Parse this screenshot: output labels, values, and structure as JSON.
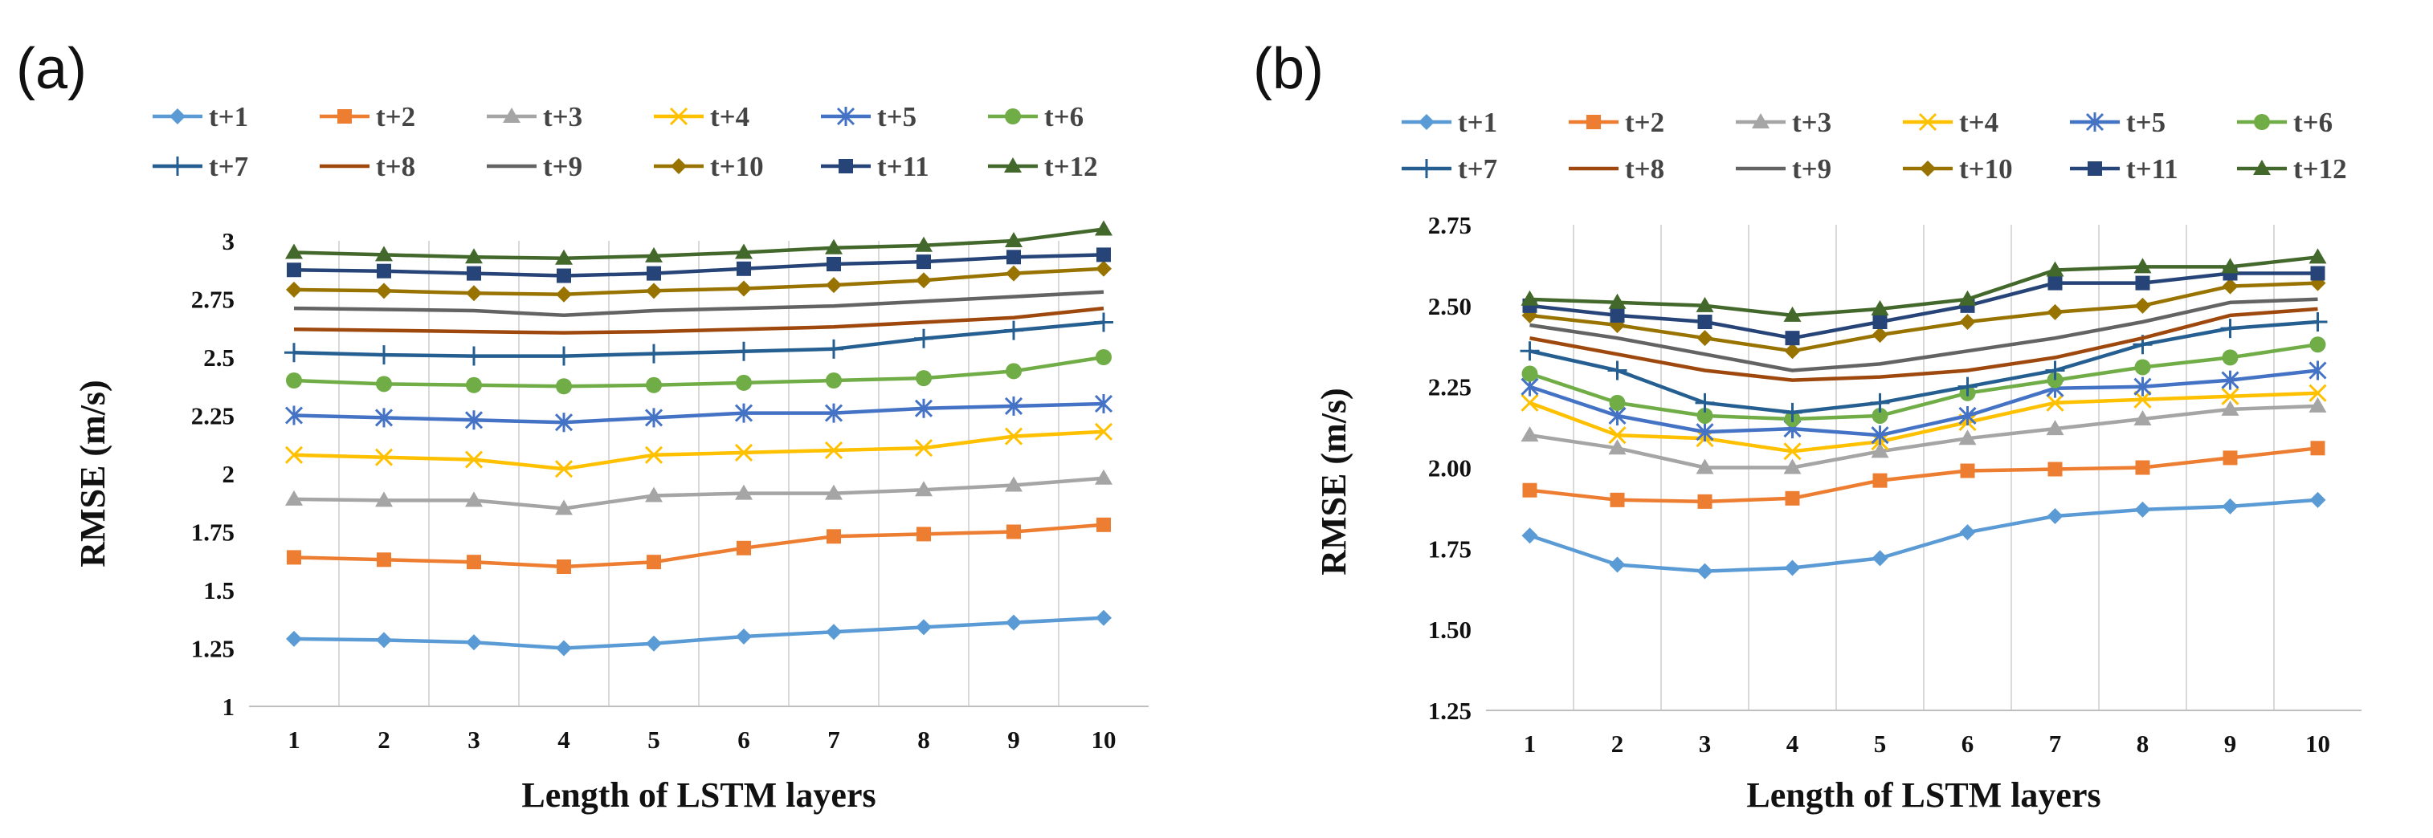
{
  "chart_data": [
    {
      "panel_label": "(a)",
      "type": "line",
      "x": [
        1,
        2,
        3,
        4,
        5,
        6,
        7,
        8,
        9,
        10
      ],
      "xlabel": "Length of LSTM layers",
      "ylabel": "RMSE (m/s)",
      "ylim": [
        1,
        3
      ],
      "yticks": [
        "1",
        "1.25",
        "1.5",
        "1.75",
        "2",
        "2.25",
        "2.5",
        "2.75",
        "3"
      ],
      "xticks": [
        "1",
        "2",
        "3",
        "4",
        "5",
        "6",
        "7",
        "8",
        "9",
        "10"
      ],
      "grid": "vertical",
      "legend_position": "top",
      "series": [
        {
          "name": "t+1",
          "color": "#5B9BD5",
          "marker": "diamond",
          "values": [
            1.29,
            1.285,
            1.275,
            1.25,
            1.27,
            1.3,
            1.32,
            1.34,
            1.36,
            1.38
          ]
        },
        {
          "name": "t+2",
          "color": "#ED7D31",
          "marker": "square",
          "values": [
            1.64,
            1.63,
            1.62,
            1.6,
            1.62,
            1.68,
            1.73,
            1.74,
            1.75,
            1.78
          ]
        },
        {
          "name": "t+3",
          "color": "#A5A5A5",
          "marker": "triangle",
          "values": [
            1.89,
            1.885,
            1.885,
            1.85,
            1.905,
            1.915,
            1.915,
            1.93,
            1.95,
            1.98
          ]
        },
        {
          "name": "t+4",
          "color": "#FFC000",
          "marker": "x",
          "values": [
            2.08,
            2.07,
            2.06,
            2.02,
            2.08,
            2.09,
            2.1,
            2.11,
            2.16,
            2.18
          ]
        },
        {
          "name": "t+5",
          "color": "#4472C4",
          "marker": "asterisk",
          "values": [
            2.25,
            2.24,
            2.23,
            2.22,
            2.24,
            2.26,
            2.26,
            2.28,
            2.29,
            2.3
          ]
        },
        {
          "name": "t+6",
          "color": "#70AD47",
          "marker": "circle",
          "values": [
            2.4,
            2.385,
            2.38,
            2.375,
            2.38,
            2.39,
            2.4,
            2.41,
            2.44,
            2.5
          ]
        },
        {
          "name": "t+7",
          "color": "#255E91",
          "marker": "plus",
          "values": [
            2.52,
            2.51,
            2.505,
            2.505,
            2.515,
            2.525,
            2.535,
            2.58,
            2.615,
            2.65
          ]
        },
        {
          "name": "t+8",
          "color": "#9E480E",
          "marker": "none",
          "values": [
            2.62,
            2.615,
            2.61,
            2.605,
            2.61,
            2.62,
            2.63,
            2.65,
            2.67,
            2.71
          ]
        },
        {
          "name": "t+9",
          "color": "#636363",
          "marker": "none",
          "values": [
            2.71,
            2.705,
            2.7,
            2.68,
            2.7,
            2.71,
            2.72,
            2.74,
            2.76,
            2.78
          ]
        },
        {
          "name": "t+10",
          "color": "#997300",
          "marker": "diamond",
          "values": [
            2.79,
            2.785,
            2.775,
            2.77,
            2.785,
            2.795,
            2.81,
            2.83,
            2.86,
            2.88
          ]
        },
        {
          "name": "t+11",
          "color": "#264478",
          "marker": "square",
          "values": [
            2.875,
            2.87,
            2.86,
            2.85,
            2.86,
            2.88,
            2.9,
            2.91,
            2.93,
            2.94
          ]
        },
        {
          "name": "t+12",
          "color": "#43682B",
          "marker": "triangle",
          "values": [
            2.95,
            2.94,
            2.93,
            2.925,
            2.935,
            2.95,
            2.97,
            2.98,
            3.0,
            3.05
          ]
        }
      ]
    },
    {
      "panel_label": "(b)",
      "type": "line",
      "x": [
        1,
        2,
        3,
        4,
        5,
        6,
        7,
        8,
        9,
        10
      ],
      "xlabel": "Length of LSTM layers",
      "ylabel": "RMSE (m/s)",
      "ylim": [
        1.25,
        2.75
      ],
      "yticks": [
        "1.25",
        "1.50",
        "1.75",
        "2.00",
        "2.25",
        "2.50",
        "2.75"
      ],
      "xticks": [
        "1",
        "2",
        "3",
        "4",
        "5",
        "6",
        "7",
        "8",
        "9",
        "10"
      ],
      "grid": "vertical",
      "legend_position": "top",
      "series": [
        {
          "name": "t+1",
          "color": "#5B9BD5",
          "marker": "diamond",
          "values": [
            1.79,
            1.7,
            1.68,
            1.69,
            1.72,
            1.8,
            1.85,
            1.87,
            1.88,
            1.9
          ]
        },
        {
          "name": "t+2",
          "color": "#ED7D31",
          "marker": "square",
          "values": [
            1.93,
            1.9,
            1.895,
            1.905,
            1.96,
            1.99,
            1.995,
            2.0,
            2.03,
            2.06
          ]
        },
        {
          "name": "t+3",
          "color": "#A5A5A5",
          "marker": "triangle",
          "values": [
            2.1,
            2.06,
            2.0,
            2.0,
            2.05,
            2.09,
            2.12,
            2.15,
            2.18,
            2.19
          ]
        },
        {
          "name": "t+4",
          "color": "#FFC000",
          "marker": "x",
          "values": [
            2.2,
            2.1,
            2.09,
            2.05,
            2.08,
            2.14,
            2.2,
            2.21,
            2.22,
            2.23
          ]
        },
        {
          "name": "t+5",
          "color": "#4472C4",
          "marker": "asterisk",
          "values": [
            2.25,
            2.16,
            2.11,
            2.12,
            2.1,
            2.16,
            2.245,
            2.25,
            2.27,
            2.3
          ]
        },
        {
          "name": "t+6",
          "color": "#70AD47",
          "marker": "circle",
          "values": [
            2.29,
            2.2,
            2.16,
            2.15,
            2.16,
            2.23,
            2.27,
            2.31,
            2.34,
            2.38
          ]
        },
        {
          "name": "t+7",
          "color": "#255E91",
          "marker": "plus",
          "values": [
            2.36,
            2.3,
            2.2,
            2.17,
            2.2,
            2.25,
            2.3,
            2.38,
            2.43,
            2.45
          ]
        },
        {
          "name": "t+8",
          "color": "#9E480E",
          "marker": "none",
          "values": [
            2.4,
            2.35,
            2.3,
            2.27,
            2.28,
            2.3,
            2.34,
            2.4,
            2.47,
            2.49
          ]
        },
        {
          "name": "t+9",
          "color": "#636363",
          "marker": "none",
          "values": [
            2.44,
            2.4,
            2.35,
            2.3,
            2.32,
            2.36,
            2.4,
            2.45,
            2.51,
            2.52
          ]
        },
        {
          "name": "t+10",
          "color": "#997300",
          "marker": "diamond",
          "values": [
            2.47,
            2.44,
            2.4,
            2.36,
            2.41,
            2.45,
            2.48,
            2.5,
            2.56,
            2.57
          ]
        },
        {
          "name": "t+11",
          "color": "#264478",
          "marker": "square",
          "values": [
            2.5,
            2.47,
            2.45,
            2.4,
            2.45,
            2.5,
            2.57,
            2.57,
            2.6,
            2.6
          ]
        },
        {
          "name": "t+12",
          "color": "#43682B",
          "marker": "triangle",
          "values": [
            2.52,
            2.51,
            2.5,
            2.47,
            2.49,
            2.52,
            2.61,
            2.62,
            2.62,
            2.65
          ]
        }
      ]
    }
  ]
}
